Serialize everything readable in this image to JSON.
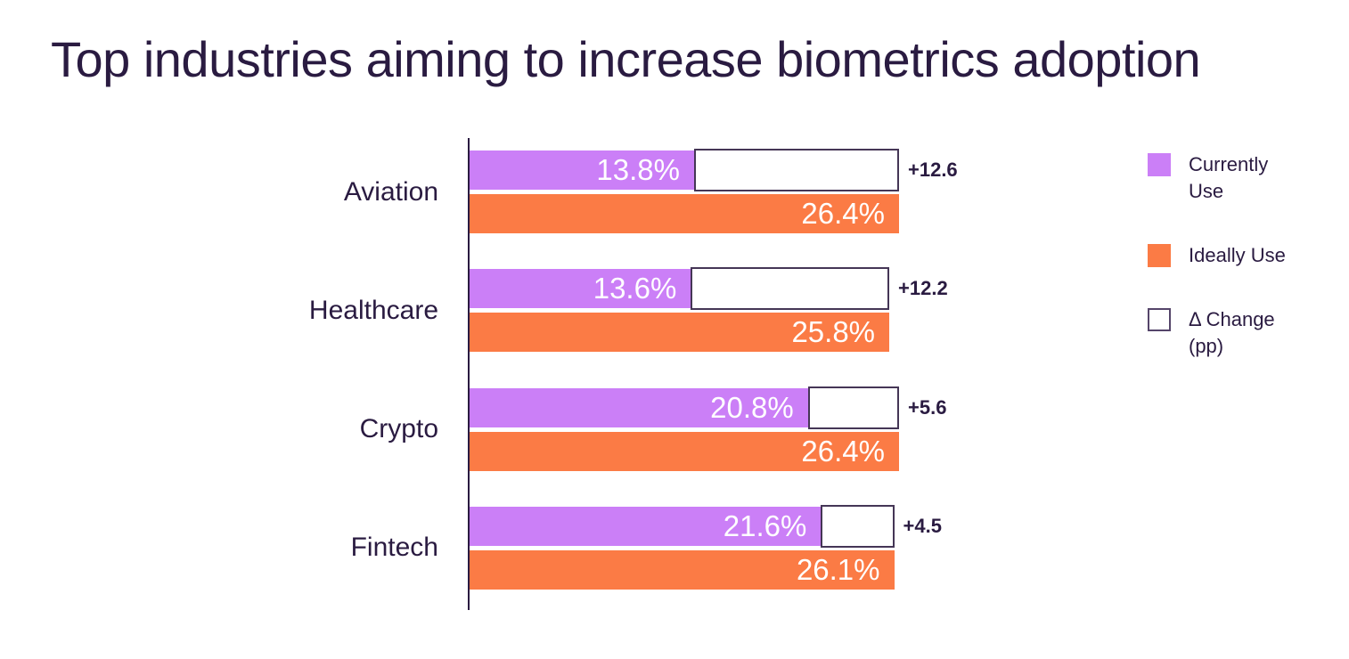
{
  "title": "Top industries aiming to increase biometrics adoption",
  "colors": {
    "background": "#ffffff",
    "text_dark": "#2a1b41",
    "axis": "#2a1b41",
    "currently_use": "#cb7ff7",
    "ideally_use": "#fb7b45",
    "delta_fill": "#ffffff",
    "delta_border": "#453656",
    "value_text": "#ffffff"
  },
  "legend": {
    "items": [
      {
        "label": "Currently\nUse",
        "swatch_color": "#cb7ff7",
        "swatch_style": "fill"
      },
      {
        "label": "Ideally Use",
        "swatch_color": "#fb7b45",
        "swatch_style": "fill"
      },
      {
        "label": "Δ Change\n(pp)",
        "swatch_color": "#ffffff",
        "swatch_style": "outline"
      }
    ]
  },
  "chart_data": {
    "type": "bar",
    "orientation": "horizontal",
    "title": "Top industries aiming to increase biometrics adoption",
    "categories": [
      "Aviation",
      "Healthcare",
      "Crypto",
      "Fintech"
    ],
    "series": [
      {
        "name": "Currently Use",
        "values": [
          13.8,
          13.6,
          20.8,
          21.6
        ],
        "value_labels": [
          "13.8%",
          "13.6%",
          "20.8%",
          "21.6%"
        ]
      },
      {
        "name": "Ideally Use",
        "values": [
          26.4,
          25.8,
          26.4,
          26.1
        ],
        "value_labels": [
          "26.4%",
          "25.8%",
          "26.4%",
          "26.1%"
        ]
      },
      {
        "name": "Δ Change (pp)",
        "values": [
          12.6,
          12.2,
          5.6,
          4.5
        ],
        "value_labels": [
          "+12.6",
          "+12.2",
          "+5.6",
          "+4.5"
        ]
      }
    ],
    "xlim": [
      0,
      26.4
    ],
    "grid": false,
    "legend_position": "top-right",
    "value_labels_inside_bars": true
  }
}
